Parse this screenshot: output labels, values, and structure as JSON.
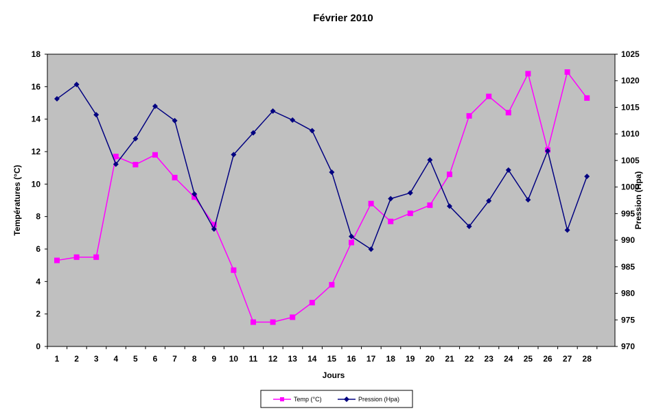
{
  "chart_data": {
    "type": "line",
    "title": "Février 2010",
    "xlabel": "Jours",
    "ylabel_left": "Températures (°C)",
    "ylabel_right": "Pression (Hpa)",
    "x": [
      1,
      2,
      3,
      4,
      5,
      6,
      7,
      8,
      9,
      10,
      11,
      12,
      13,
      14,
      15,
      16,
      17,
      18,
      19,
      20,
      21,
      22,
      23,
      24,
      25,
      26,
      27,
      28
    ],
    "ylim_left": [
      0,
      18
    ],
    "yticks_left": [
      0,
      2,
      4,
      6,
      8,
      10,
      12,
      14,
      16,
      18
    ],
    "ylim_right": [
      970,
      1025
    ],
    "yticks_right": [
      970,
      975,
      980,
      985,
      990,
      995,
      1000,
      1005,
      1010,
      1015,
      1020,
      1025
    ],
    "plot_background": "#c0c0c0",
    "legend_position": "bottom",
    "series": [
      {
        "name": "Temp (°C)",
        "axis": "left",
        "color": "#ff00ff",
        "marker": "square",
        "values": [
          5.3,
          5.5,
          5.5,
          11.7,
          11.2,
          11.8,
          10.4,
          9.2,
          7.5,
          4.7,
          1.5,
          1.5,
          1.8,
          2.7,
          3.8,
          6.4,
          8.8,
          7.7,
          8.2,
          8.7,
          10.6,
          14.2,
          15.4,
          14.4,
          16.8,
          12.1,
          16.9,
          15.3
        ]
      },
      {
        "name": "Pression (Hpa)",
        "axis": "right",
        "color": "#000080",
        "marker": "diamond",
        "values": [
          1016.6,
          1019.3,
          1013.6,
          1004.3,
          1009.1,
          1015.2,
          1012.5,
          998.7,
          992.1,
          1006.1,
          1010.2,
          1014.3,
          1012.6,
          1010.6,
          1002.8,
          990.7,
          988.3,
          997.8,
          998.9,
          1005.1,
          996.4,
          992.6,
          997.4,
          1003.2,
          997.6,
          1006.8,
          991.9,
          1002
        ]
      }
    ]
  }
}
